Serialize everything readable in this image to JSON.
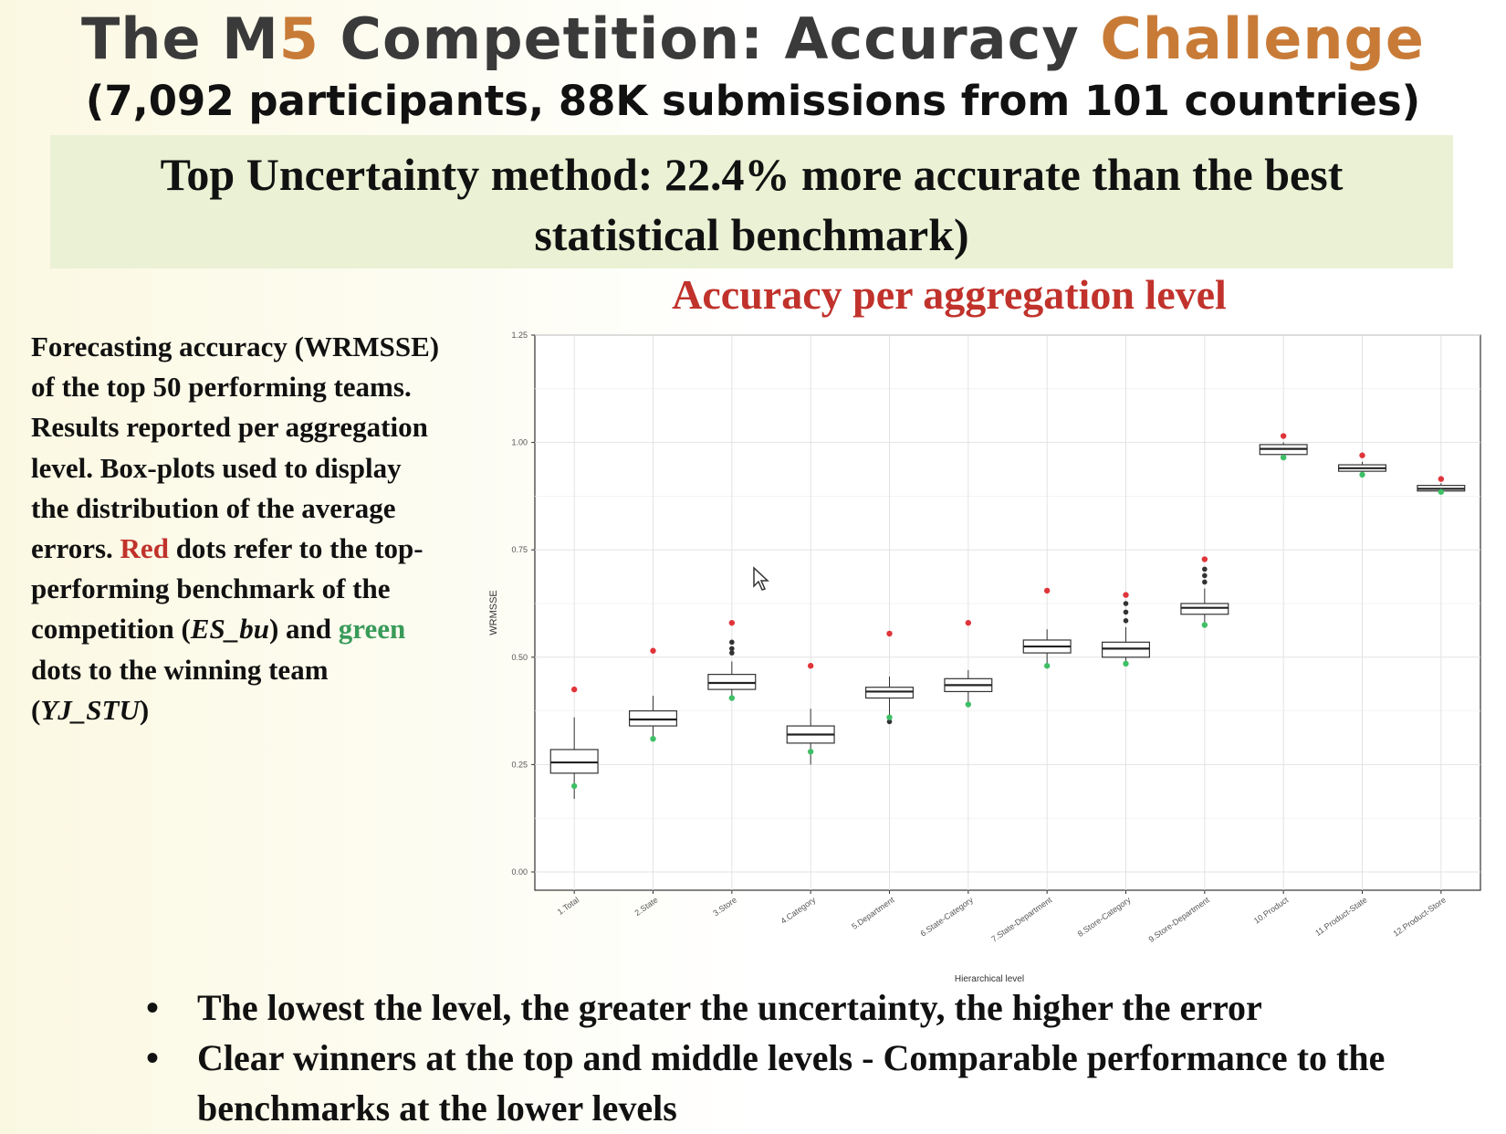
{
  "header": {
    "title_part1": "The M",
    "title_num": "5",
    "title_part2": " Competition: Accuracy ",
    "title_part3": "Challenge",
    "subtitle": "(7,092 participants, 88K submissions from 101 countries)"
  },
  "banner": {
    "line1": "Top Uncertainty method: 22.4% more accurate than the best",
    "line2": "statistical benchmark)"
  },
  "chart_title": "Accuracy per aggregation level",
  "description": {
    "p1": "Forecasting accuracy (WRMSSE) of the top 50 performing teams. Results reported per aggregation level. Box-plots used to display the distribution of the average errors. ",
    "red_word": "Red",
    "p2": " dots refer to the top-performing benchmark of the competition (",
    "bench_name": "ES_bu",
    "p3": ") and ",
    "green_word": "green",
    "p4": " dots to the winning team (",
    "winner_name": "YJ_STU",
    "p5": ")"
  },
  "bullets": [
    "The lowest the level, the greater the uncertainty, the higher the error",
    "Clear winners at the top and middle levels - Comparable performance to the benchmarks at the lower levels"
  ],
  "bullet_symbol": "•",
  "colors": {
    "accent_orange": "#c87b37",
    "title_gray": "#3a3a3a",
    "red": "#c0322b",
    "green": "#3a9b5a",
    "banner_bg": "#eaf1d4"
  },
  "chart_data": {
    "type": "boxplot",
    "xlabel": "Hierarchical level",
    "ylabel": "WRMSSE",
    "ylim": [
      0.0,
      1.25
    ],
    "yticks": [
      "0.00",
      "0.25",
      "0.50",
      "0.75",
      "1.00",
      "1.25"
    ],
    "grid": true,
    "categories": [
      "1.Total",
      "2.State",
      "3.Store",
      "4.Category",
      "5.Department",
      "6.State-Category",
      "7.State-Department",
      "8.Store-Category",
      "9.Store-Department",
      "10.Product",
      "11.Product-State",
      "12.Product-Store"
    ],
    "boxes": [
      {
        "min": 0.17,
        "q1": 0.23,
        "median": 0.255,
        "q3": 0.285,
        "max": 0.36,
        "outliers": []
      },
      {
        "min": 0.31,
        "q1": 0.34,
        "median": 0.355,
        "q3": 0.375,
        "max": 0.41,
        "outliers": []
      },
      {
        "min": 0.4,
        "q1": 0.425,
        "median": 0.44,
        "q3": 0.46,
        "max": 0.49,
        "outliers": [
          0.51,
          0.52,
          0.535
        ]
      },
      {
        "min": 0.25,
        "q1": 0.3,
        "median": 0.32,
        "q3": 0.34,
        "max": 0.38,
        "outliers": []
      },
      {
        "min": 0.35,
        "q1": 0.405,
        "median": 0.42,
        "q3": 0.43,
        "max": 0.455,
        "outliers": [
          0.35
        ]
      },
      {
        "min": 0.39,
        "q1": 0.42,
        "median": 0.435,
        "q3": 0.45,
        "max": 0.47,
        "outliers": []
      },
      {
        "min": 0.48,
        "q1": 0.51,
        "median": 0.525,
        "q3": 0.54,
        "max": 0.565,
        "outliers": []
      },
      {
        "min": 0.48,
        "q1": 0.5,
        "median": 0.52,
        "q3": 0.535,
        "max": 0.57,
        "outliers": [
          0.585,
          0.605,
          0.625
        ]
      },
      {
        "min": 0.58,
        "q1": 0.6,
        "median": 0.615,
        "q3": 0.625,
        "max": 0.66,
        "outliers": [
          0.675,
          0.69,
          0.705
        ]
      },
      {
        "min": 0.965,
        "q1": 0.972,
        "median": 0.985,
        "q3": 0.995,
        "max": 1.0,
        "outliers": []
      },
      {
        "min": 0.928,
        "q1": 0.933,
        "median": 0.94,
        "q3": 0.948,
        "max": 0.955,
        "outliers": []
      },
      {
        "min": 0.884,
        "q1": 0.887,
        "median": 0.892,
        "q3": 0.9,
        "max": 0.905,
        "outliers": []
      }
    ],
    "red_points": [
      0.425,
      0.515,
      0.58,
      0.48,
      0.555,
      0.58,
      0.655,
      0.645,
      0.728,
      1.015,
      0.97,
      0.915
    ],
    "green_points": [
      0.2,
      0.31,
      0.405,
      0.28,
      0.36,
      0.39,
      0.48,
      0.485,
      0.575,
      0.965,
      0.925,
      0.885
    ]
  }
}
